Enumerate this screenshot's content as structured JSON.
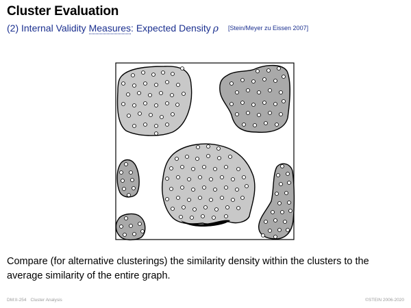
{
  "slide": {
    "title": "Cluster Evaluation",
    "subtitle_prefix": "(2) Internal Validity ",
    "subtitle_link": "Measures",
    "subtitle_rest": ": Expected Density",
    "subtitle_symbol": "ρ",
    "reference": "[Stein/Meyer zu Eissen 2007]",
    "body": "Compare (for alternative clusterings) the similarity density within the clusters to the average similarity of the entire graph."
  },
  "figure": {
    "description_colors": {
      "light_cluster": "#c8c8c8",
      "dark_cluster": "#a9a9a9",
      "outline": "#000000",
      "point": "#ffffff"
    }
  },
  "footer": {
    "page": "DM:II-254",
    "section": "Cluster Analysis",
    "copyright": "©STEIN 2006-2020"
  }
}
